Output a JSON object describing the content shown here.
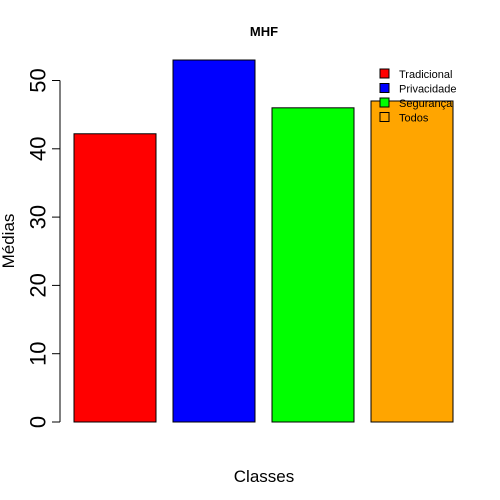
{
  "chart_data": {
    "type": "bar",
    "title": "MHF",
    "xlabel": "Classes",
    "ylabel": "Médias",
    "categories": [
      "Tradicional",
      "Privacidade",
      "Segurança",
      "Todos"
    ],
    "values": [
      42.2,
      53.0,
      46.0,
      47.0
    ],
    "colors": [
      "#ff0000",
      "#0000ff",
      "#00ff00",
      "#ffa500"
    ],
    "ylim": [
      0,
      55
    ],
    "yticks": [
      0,
      10,
      20,
      30,
      40,
      50
    ],
    "grid": false,
    "legend": {
      "placement": "top-right",
      "entries": [
        {
          "label": "Tradicional",
          "color": "#ff0000"
        },
        {
          "label": "Privacidade",
          "color": "#0000ff"
        },
        {
          "label": "Segurança",
          "color": "#00ff00"
        },
        {
          "label": "Todos",
          "color": "#ffa500"
        }
      ]
    }
  }
}
